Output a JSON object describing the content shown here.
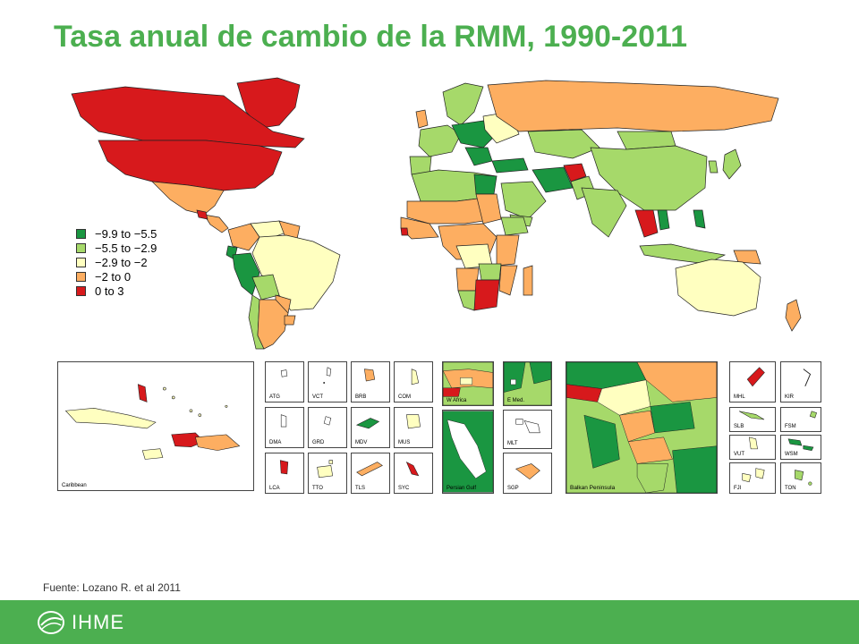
{
  "title": "Tasa anual de cambio de la RMM, 1990-2011",
  "colors": {
    "c1": "#1a9641",
    "c2": "#a6d96a",
    "c3": "#ffffc0",
    "c4": "#fdae61",
    "c5": "#d7191c",
    "accent": "#4caf50"
  },
  "legend": [
    {
      "label": "−9.9 to −5.5",
      "color": "#1a9641"
    },
    {
      "label": "−5.5 to −2.9",
      "color": "#a6d96a"
    },
    {
      "label": "−2.9 to −2",
      "color": "#ffffc0"
    },
    {
      "label": "−2 to 0",
      "color": "#fdae61"
    },
    {
      "label": "0 to 3",
      "color": "#d7191c"
    }
  ],
  "insets": {
    "caribbean": "Caribbean",
    "small": [
      "ATG",
      "VCT",
      "BRB",
      "COM",
      "DMA",
      "GRD",
      "MDV",
      "MUS",
      "LCA",
      "TTO",
      "TLS",
      "SYC"
    ],
    "w_africa": "W Africa",
    "e_med": "E Med.",
    "mlt": "MLT",
    "persian_gulf": "Persian Gulf",
    "sgp": "SGP",
    "balkan": "Balkan Peninsula",
    "pacific": [
      "MHL",
      "KIR",
      "SLB",
      "FSM",
      "VUT",
      "WSM",
      "FJI",
      "TON"
    ]
  },
  "source": "Fuente: Lozano R. et al 2011",
  "logo": {
    "text": "IHME",
    "icon": "ihme-leaf-icon"
  }
}
